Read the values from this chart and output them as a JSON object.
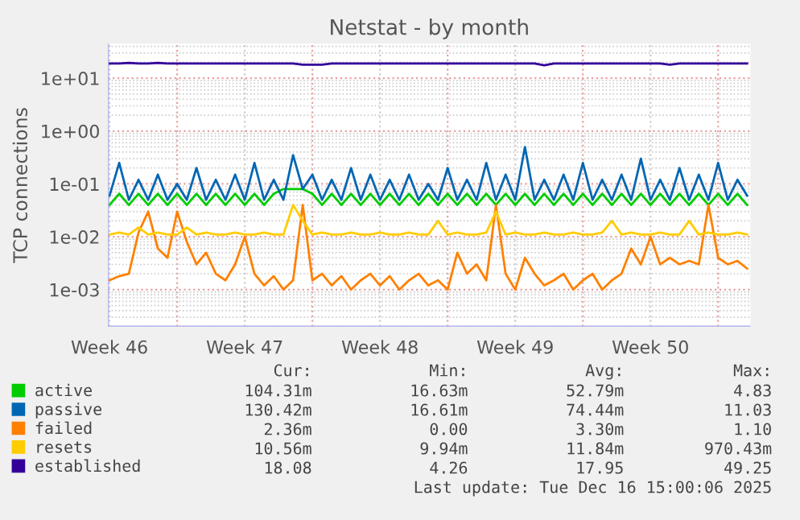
{
  "chart_data": {
    "type": "line",
    "title": "Netstat - by month",
    "ylabel": "TCP connections",
    "log": "y",
    "grid": true,
    "legend": "bottom left",
    "marker": "none",
    "line_style": "solid",
    "xlim": [
      "2025-11-13T10:05",
      "2025-12-16T16:05"
    ],
    "ylim": [
      0.0002,
      45
    ],
    "xticks": [
      {
        "value": "2025-11-13T12:00",
        "label": "Week 46"
      },
      {
        "value": "2025-11-17",
        "label": null
      },
      {
        "value": "2025-11-20T12:00",
        "label": "Week 47"
      },
      {
        "value": "2025-11-24",
        "label": null
      },
      {
        "value": "2025-11-27T12:00",
        "label": "Week 48"
      },
      {
        "value": "2025-12-01",
        "label": null
      },
      {
        "value": "2025-12-04T12:00",
        "label": "Week 49"
      },
      {
        "value": "2025-12-08",
        "label": null
      },
      {
        "value": "2025-12-11T12:00",
        "label": "Week 50"
      },
      {
        "value": "2025-12-15",
        "label": null
      }
    ],
    "yticks": [
      {
        "value": 0.001,
        "label": "1e-03"
      },
      {
        "value": 0.01,
        "label": "1e-02"
      },
      {
        "value": 0.1,
        "label": "1e-01"
      },
      {
        "value": 1,
        "label": "1e+00"
      },
      {
        "value": 10,
        "label": "1e+01"
      }
    ],
    "x": [
      "2025-11-13T12:00",
      "2025-11-14",
      "2025-11-14T12:00",
      "2025-11-15",
      "2025-11-15T12:00",
      "2025-11-16",
      "2025-11-16T12:00",
      "2025-11-17",
      "2025-11-17T12:00",
      "2025-11-18",
      "2025-11-18T12:00",
      "2025-11-19",
      "2025-11-19T12:00",
      "2025-11-20",
      "2025-11-20T12:00",
      "2025-11-21",
      "2025-11-21T12:00",
      "2025-11-22",
      "2025-11-22T12:00",
      "2025-11-23",
      "2025-11-23T12:00",
      "2025-11-24",
      "2025-11-24T12:00",
      "2025-11-25",
      "2025-11-25T12:00",
      "2025-11-26",
      "2025-11-26T12:00",
      "2025-11-27",
      "2025-11-27T12:00",
      "2025-11-28",
      "2025-11-28T12:00",
      "2025-11-29",
      "2025-11-29T12:00",
      "2025-11-30",
      "2025-11-30T12:00",
      "2025-12-01",
      "2025-12-01T12:00",
      "2025-12-02",
      "2025-12-02T12:00",
      "2025-12-03",
      "2025-12-03T12:00",
      "2025-12-04",
      "2025-12-04T12:00",
      "2025-12-05",
      "2025-12-05T12:00",
      "2025-12-06",
      "2025-12-06T12:00",
      "2025-12-07",
      "2025-12-07T12:00",
      "2025-12-08",
      "2025-12-08T12:00",
      "2025-12-09",
      "2025-12-09T12:00",
      "2025-12-10",
      "2025-12-10T12:00",
      "2025-12-11",
      "2025-12-11T12:00",
      "2025-12-12",
      "2025-12-12T12:00",
      "2025-12-13",
      "2025-12-13T12:00",
      "2025-12-14",
      "2025-12-14T12:00",
      "2025-12-15",
      "2025-12-15T12:00",
      "2025-12-16",
      "2025-12-16T12:00"
    ],
    "series": [
      {
        "name": "active",
        "color": "#00cc00",
        "values": [
          0.04,
          0.065,
          0.04,
          0.065,
          0.04,
          0.065,
          0.04,
          0.065,
          0.04,
          0.065,
          0.04,
          0.065,
          0.04,
          0.065,
          0.04,
          0.065,
          0.04,
          0.065,
          0.08,
          0.08,
          0.08,
          0.065,
          0.04,
          0.065,
          0.04,
          0.065,
          0.04,
          0.065,
          0.04,
          0.065,
          0.04,
          0.065,
          0.04,
          0.065,
          0.04,
          0.065,
          0.04,
          0.065,
          0.04,
          0.065,
          0.04,
          0.065,
          0.04,
          0.065,
          0.04,
          0.065,
          0.04,
          0.065,
          0.04,
          0.065,
          0.04,
          0.065,
          0.04,
          0.065,
          0.04,
          0.065,
          0.04,
          0.065,
          0.04,
          0.065,
          0.04,
          0.065,
          0.04,
          0.065,
          0.04,
          0.065,
          0.04
        ]
      },
      {
        "name": "passive",
        "color": "#0066b3",
        "values": [
          0.06,
          0.25,
          0.05,
          0.12,
          0.05,
          0.15,
          0.05,
          0.1,
          0.05,
          0.2,
          0.05,
          0.12,
          0.05,
          0.15,
          0.05,
          0.25,
          0.05,
          0.12,
          0.05,
          0.35,
          0.08,
          0.15,
          0.05,
          0.12,
          0.05,
          0.2,
          0.05,
          0.15,
          0.05,
          0.12,
          0.05,
          0.15,
          0.05,
          0.1,
          0.05,
          0.2,
          0.05,
          0.12,
          0.05,
          0.25,
          0.05,
          0.15,
          0.05,
          0.5,
          0.05,
          0.12,
          0.05,
          0.15,
          0.05,
          0.25,
          0.05,
          0.12,
          0.05,
          0.15,
          0.05,
          0.3,
          0.05,
          0.12,
          0.05,
          0.2,
          0.05,
          0.15,
          0.05,
          0.25,
          0.05,
          0.12,
          0.06
        ]
      },
      {
        "name": "failed",
        "color": "#ff8000",
        "values": [
          0.0015,
          0.0018,
          0.002,
          0.012,
          0.03,
          0.006,
          0.004,
          0.03,
          0.008,
          0.003,
          0.005,
          0.002,
          0.0015,
          0.003,
          0.01,
          0.002,
          0.0012,
          0.0018,
          0.001,
          0.0015,
          0.04,
          0.0015,
          0.002,
          0.0012,
          0.0018,
          0.001,
          0.0015,
          0.002,
          0.0012,
          0.0018,
          0.001,
          0.0015,
          0.002,
          0.0012,
          0.0015,
          0.001,
          0.005,
          0.002,
          0.003,
          0.0015,
          0.04,
          0.002,
          0.001,
          0.004,
          0.002,
          0.0012,
          0.0015,
          0.002,
          0.001,
          0.0015,
          0.002,
          0.001,
          0.0015,
          0.002,
          0.006,
          0.003,
          0.01,
          0.003,
          0.004,
          0.003,
          0.0035,
          0.003,
          0.04,
          0.004,
          0.003,
          0.0035,
          0.0025
        ]
      },
      {
        "name": "resets",
        "color": "#ffcc00",
        "values": [
          0.011,
          0.012,
          0.011,
          0.015,
          0.011,
          0.012,
          0.011,
          0.011,
          0.015,
          0.011,
          0.012,
          0.011,
          0.011,
          0.012,
          0.011,
          0.011,
          0.012,
          0.011,
          0.011,
          0.04,
          0.02,
          0.011,
          0.012,
          0.011,
          0.011,
          0.012,
          0.011,
          0.011,
          0.012,
          0.011,
          0.011,
          0.012,
          0.011,
          0.011,
          0.02,
          0.011,
          0.012,
          0.011,
          0.011,
          0.012,
          0.03,
          0.011,
          0.012,
          0.011,
          0.011,
          0.012,
          0.011,
          0.011,
          0.012,
          0.011,
          0.011,
          0.012,
          0.02,
          0.011,
          0.012,
          0.011,
          0.011,
          0.012,
          0.011,
          0.011,
          0.02,
          0.011,
          0.012,
          0.011,
          0.011,
          0.012,
          0.011
        ]
      },
      {
        "name": "established",
        "color": "#330099",
        "values": [
          19,
          19,
          19.5,
          19,
          19,
          19.5,
          19,
          19,
          19,
          19,
          19,
          19,
          19,
          19,
          19,
          19,
          19,
          19,
          19,
          19,
          18,
          18,
          18,
          19,
          19,
          19,
          19,
          19,
          19,
          19,
          19,
          19,
          19,
          19,
          19,
          19,
          19,
          19,
          19,
          19,
          19,
          19,
          19,
          19,
          19,
          17.5,
          19,
          19,
          19,
          19,
          19,
          19,
          19,
          19,
          19,
          19,
          19,
          19,
          18,
          19,
          19,
          19,
          19,
          19,
          19,
          19,
          19
        ]
      }
    ],
    "annotations": [
      "Cur:",
      "Min:",
      "Avg:",
      "Max:",
      "104.31m",
      "16.63m",
      "52.79m",
      "4.83",
      "130.42m",
      "16.61m",
      "74.44m",
      "11.03",
      "2.36m",
      "0.00",
      "3.30m",
      "1.10",
      "10.56m",
      "9.94m",
      "11.84m",
      "970.43m",
      "18.08",
      "4.26",
      "17.95",
      "49.25",
      "Last update: Tue Dec 16 15:00:06 2025"
    ]
  }
}
